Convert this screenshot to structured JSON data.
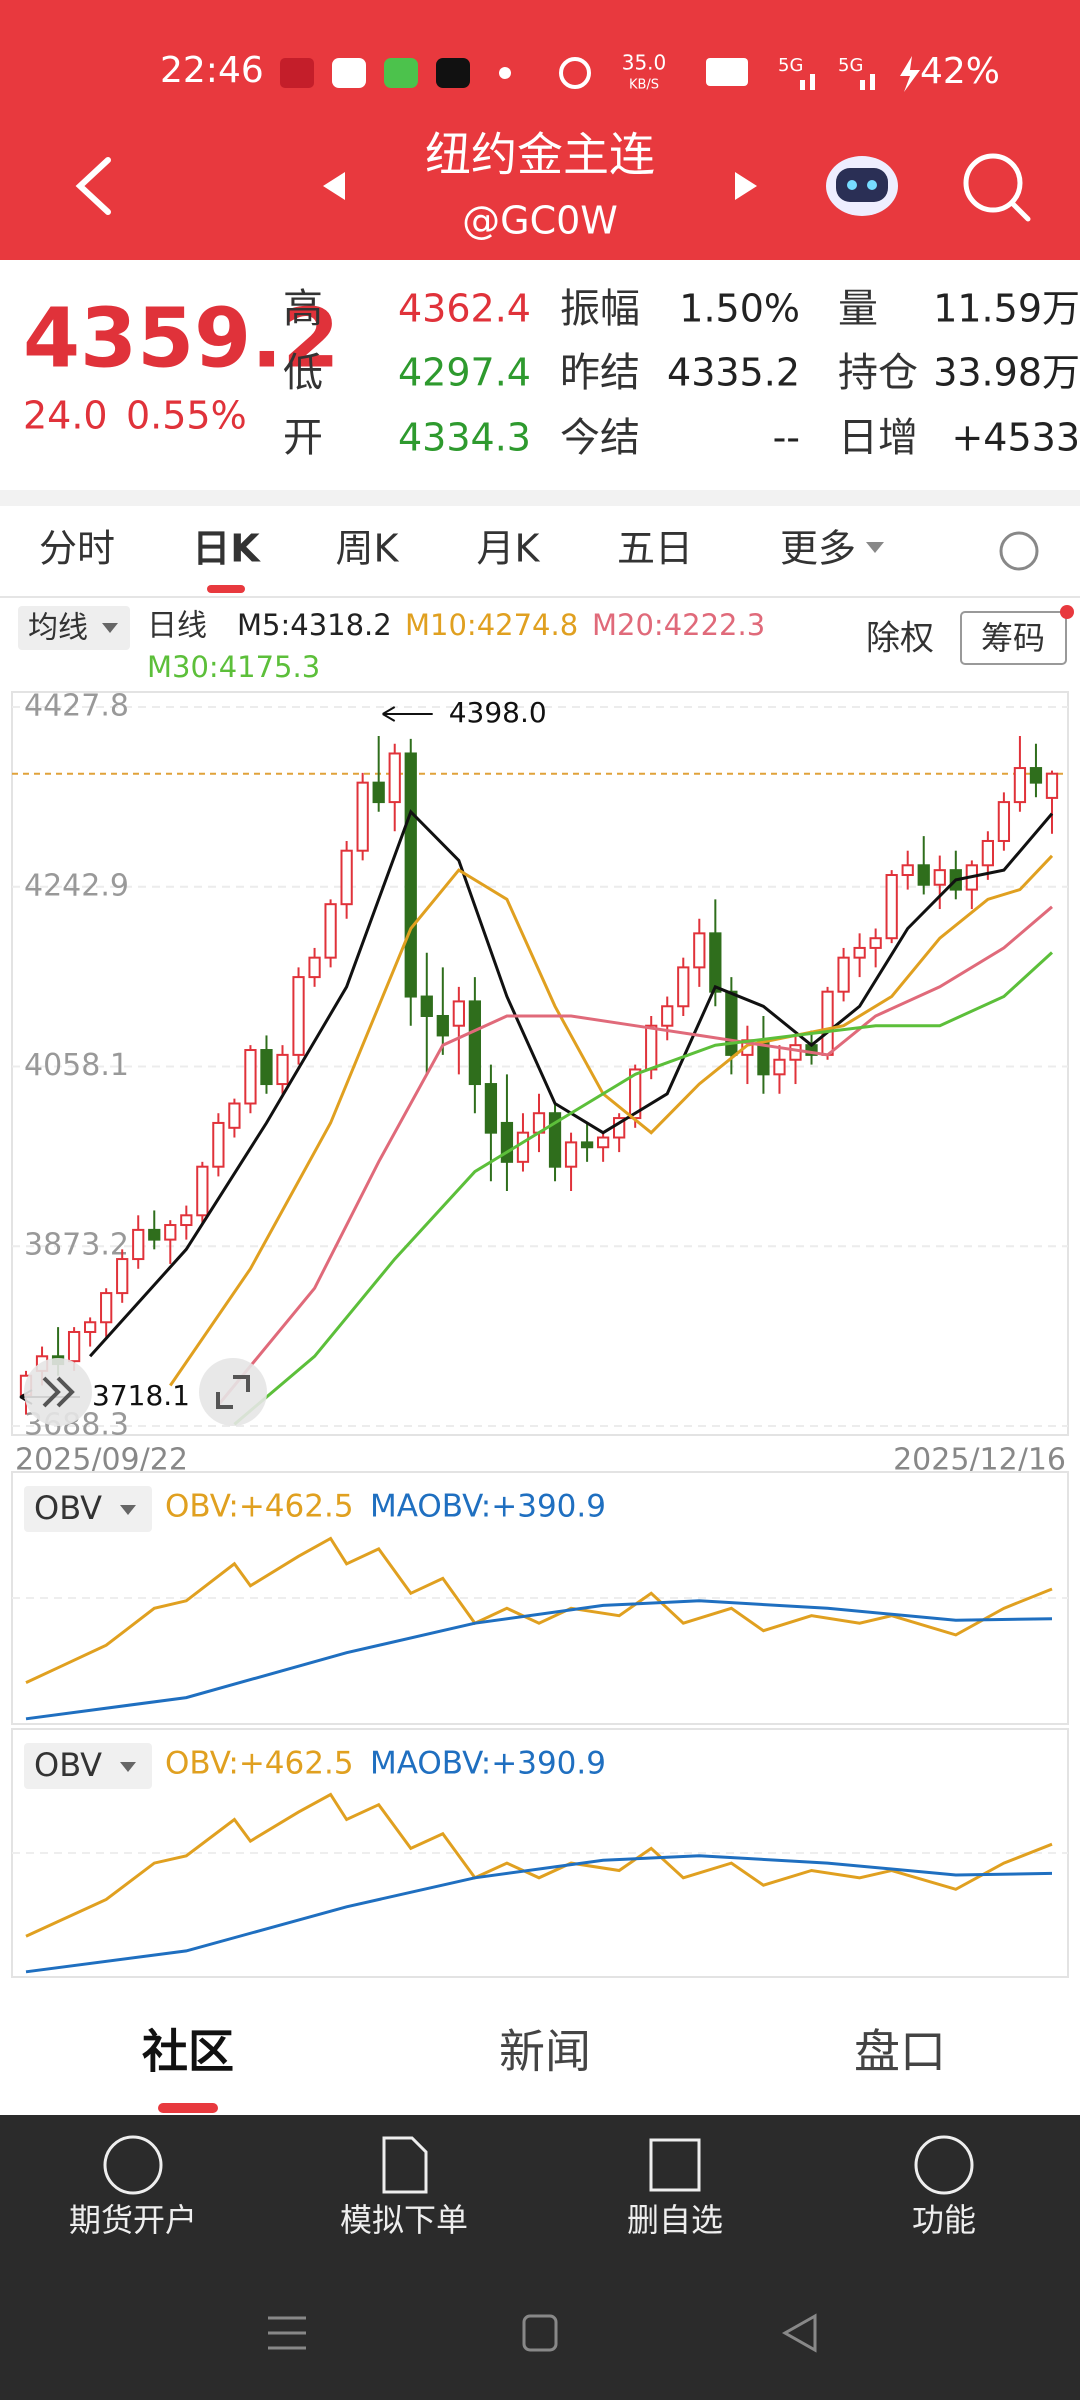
{
  "status_bar": {
    "time": "22:46",
    "net_speed": "35.0",
    "net_unit": "KB/S",
    "signal_1": "5G",
    "signal_2": "5G",
    "battery": "42%"
  },
  "header": {
    "title": "纽约金主连",
    "code": "@GC0W"
  },
  "quote": {
    "price": "4359.2",
    "change": "24.0",
    "change_pct": "0.55%",
    "stats": [
      [
        {
          "label": "高",
          "value": "4362.4"
        },
        {
          "label": "振幅",
          "value": "1.50%"
        },
        {
          "label": "量",
          "value": "11.59万"
        }
      ],
      [
        {
          "label": "低",
          "value": "4297.4"
        },
        {
          "label": "昨结",
          "value": "4335.2"
        },
        {
          "label": "持仓",
          "value": "33.98万"
        }
      ],
      [
        {
          "label": "开",
          "value": "4334.3"
        },
        {
          "label": "今结",
          "value": "--"
        },
        {
          "label": "日增",
          "value": "+4533"
        }
      ]
    ]
  },
  "tabs": [
    "分时",
    "日K",
    "周K",
    "月K",
    "五日",
    "更多"
  ],
  "indicator_bar": {
    "selector": "均线",
    "period": "日线",
    "right_label": "除权",
    "button": "筹码"
  },
  "chart": {
    "type": "candlestick",
    "ylim": [
      3688.3,
      4427.8
    ],
    "yticks": [
      4427.8,
      4242.9,
      4058.1,
      3873.2,
      3688.3
    ],
    "start_date": "2025/09/22",
    "end_date": "2025/12/16",
    "high_note": {
      "value": 4398,
      "label": "4398.0"
    },
    "low_note": 3718.1,
    "last_price": 4359.2,
    "up_color": "#e0323a",
    "down_color": "#2f6e1c",
    "price_line_color": "#e0a23a",
    "candles": [
      [
        3720,
        3745,
        3700,
        3740
      ],
      [
        3745,
        3770,
        3730,
        3760
      ],
      [
        3760,
        3790,
        3740,
        3752
      ],
      [
        3755,
        3790,
        3745,
        3785
      ],
      [
        3785,
        3800,
        3770,
        3795
      ],
      [
        3795,
        3830,
        3780,
        3825
      ],
      [
        3825,
        3870,
        3815,
        3860
      ],
      [
        3860,
        3905,
        3850,
        3890
      ],
      [
        3890,
        3910,
        3870,
        3880
      ],
      [
        3880,
        3900,
        3855,
        3895
      ],
      [
        3895,
        3915,
        3880,
        3905
      ],
      [
        3905,
        3960,
        3895,
        3955
      ],
      [
        3955,
        4010,
        3945,
        4000
      ],
      [
        3995,
        4025,
        3985,
        4020
      ],
      [
        4020,
        4080,
        4010,
        4075
      ],
      [
        4075,
        4090,
        4030,
        4040
      ],
      [
        4040,
        4080,
        4030,
        4070
      ],
      [
        4070,
        4160,
        4060,
        4150
      ],
      [
        4150,
        4180,
        4140,
        4170
      ],
      [
        4170,
        4230,
        4160,
        4225
      ],
      [
        4225,
        4290,
        4210,
        4280
      ],
      [
        4280,
        4360,
        4270,
        4350
      ],
      [
        4350,
        4398,
        4320,
        4330
      ],
      [
        4330,
        4390,
        4300,
        4380
      ],
      [
        4380,
        4395,
        4100,
        4130
      ],
      [
        4130,
        4175,
        4050,
        4110
      ],
      [
        4110,
        4160,
        4070,
        4090
      ],
      [
        4100,
        4140,
        4050,
        4125
      ],
      [
        4125,
        4150,
        4010,
        4040
      ],
      [
        4040,
        4060,
        3940,
        3990
      ],
      [
        4000,
        4050,
        3930,
        3960
      ],
      [
        3960,
        4010,
        3950,
        3990
      ],
      [
        3990,
        4030,
        3970,
        4010
      ],
      [
        4010,
        4020,
        3940,
        3955
      ],
      [
        3955,
        3990,
        3930,
        3980
      ],
      [
        3980,
        4000,
        3960,
        3975
      ],
      [
        3975,
        3990,
        3960,
        3985
      ],
      [
        3985,
        4010,
        3970,
        4005
      ],
      [
        4005,
        4060,
        3995,
        4055
      ],
      [
        4055,
        4110,
        4045,
        4100
      ],
      [
        4100,
        4130,
        4085,
        4120
      ],
      [
        4120,
        4170,
        4110,
        4160
      ],
      [
        4160,
        4210,
        4140,
        4195
      ],
      [
        4195,
        4230,
        4120,
        4135
      ],
      [
        4135,
        4150,
        4050,
        4070
      ],
      [
        4070,
        4100,
        4040,
        4085
      ],
      [
        4085,
        4110,
        4030,
        4050
      ],
      [
        4050,
        4080,
        4030,
        4065
      ],
      [
        4065,
        4090,
        4040,
        4080
      ],
      [
        4080,
        4095,
        4060,
        4070
      ],
      [
        4070,
        4140,
        4065,
        4135
      ],
      [
        4135,
        4180,
        4125,
        4170
      ],
      [
        4170,
        4195,
        4150,
        4180
      ],
      [
        4180,
        4200,
        4160,
        4190
      ],
      [
        4190,
        4260,
        4185,
        4255
      ],
      [
        4255,
        4280,
        4240,
        4265
      ],
      [
        4265,
        4295,
        4235,
        4245
      ],
      [
        4245,
        4275,
        4220,
        4260
      ],
      [
        4260,
        4280,
        4230,
        4240
      ],
      [
        4240,
        4270,
        4220,
        4265
      ],
      [
        4265,
        4300,
        4250,
        4290
      ],
      [
        4290,
        4340,
        4280,
        4330
      ],
      [
        4330,
        4398,
        4320,
        4365
      ],
      [
        4365,
        4390,
        4335,
        4350
      ],
      [
        4334.3,
        4362.4,
        4297.4,
        4359.2
      ]
    ],
    "ma_series": [
      {
        "name": "M5",
        "label": "M5:4318.2",
        "color": "#111111",
        "x": [
          4,
          10,
          15,
          20,
          24,
          27,
          30,
          33,
          36,
          40,
          43,
          46,
          49,
          52,
          55,
          58,
          61,
          64
        ],
        "values": [
          3760,
          3870,
          4000,
          4140,
          4320,
          4270,
          4130,
          4020,
          3990,
          4030,
          4140,
          4120,
          4080,
          4120,
          4200,
          4250,
          4260,
          4318.2
        ]
      },
      {
        "name": "M10",
        "label": "M10:4274.8",
        "color": "#e0a020",
        "x": [
          9,
          14,
          19,
          24,
          27,
          30,
          33,
          36,
          39,
          42,
          45,
          48,
          51,
          54,
          57,
          60,
          62,
          64
        ],
        "values": [
          3730,
          3850,
          4000,
          4200,
          4260,
          4230,
          4120,
          4030,
          3990,
          4040,
          4080,
          4090,
          4100,
          4130,
          4190,
          4230,
          4240,
          4274.8
        ]
      },
      {
        "name": "M20",
        "label": "M20:4222.3",
        "color": "#e06a7a",
        "x": [
          12,
          18,
          22,
          26,
          30,
          34,
          38,
          42,
          46,
          50,
          53,
          57,
          61,
          64
        ],
        "values": [
          3710,
          3830,
          3960,
          4080,
          4110,
          4110,
          4100,
          4090,
          4080,
          4070,
          4110,
          4140,
          4180,
          4222.3
        ]
      },
      {
        "name": "M30",
        "label": "M30:4175.3",
        "color": "#5cbf3a",
        "x": [
          13,
          18,
          23,
          28,
          33,
          38,
          43,
          48,
          53,
          57,
          61,
          64
        ],
        "values": [
          3690,
          3760,
          3860,
          3950,
          4000,
          4050,
          4080,
          4090,
          4100,
          4100,
          4130,
          4175.3
        ]
      }
    ]
  },
  "obv": {
    "selector": "OBV",
    "ylim": [
      147,
      720
    ],
    "series": [
      {
        "name": "OBV",
        "label": "OBV:+462.5",
        "color": "#e0a020",
        "x": [
          0,
          2,
          5,
          8,
          10,
          13,
          14,
          17,
          19,
          20,
          22,
          24,
          26,
          28,
          30,
          32,
          34,
          37,
          39,
          41,
          44,
          46,
          49,
          52,
          54,
          58,
          61,
          64
        ],
        "values": [
          237,
          273,
          327,
          416,
          434,
          523,
          470,
          541,
          584,
          523,
          559,
          452,
          488,
          380,
          416,
          380,
          416,
          398,
          452,
          380,
          416,
          362,
          398,
          380,
          398,
          352,
          416,
          462.5
        ]
      },
      {
        "name": "MAOBV",
        "label": "MAOBV:+390.9",
        "color": "#1f6fc0",
        "x": [
          0,
          10,
          20,
          28,
          36,
          42,
          50,
          58,
          64
        ],
        "values": [
          150,
          201,
          309,
          380,
          423,
          434,
          416,
          387,
          390.9
        ]
      }
    ]
  },
  "bottom_tabs": [
    "社区",
    "新闻",
    "盘口"
  ],
  "toolbar": [
    "期货开户",
    "模拟下单",
    "删自选",
    "功能"
  ]
}
